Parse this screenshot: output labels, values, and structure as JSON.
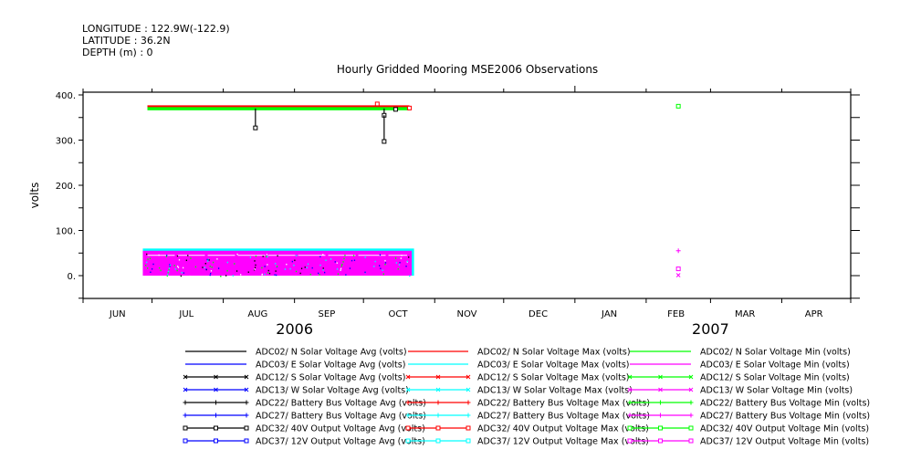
{
  "header": {
    "longitude": "LONGITUDE : 122.9W(-122.9)",
    "latitude": "LATITUDE : 36.2N",
    "depth": "DEPTH (m) : 0"
  },
  "chart_data": {
    "type": "scatter",
    "title": "Hourly Gridded Mooring MSE2006 Observations",
    "ylabel": "volts",
    "xlabel": "",
    "xlim": [
      "2006-06-01",
      "2007-05-01"
    ],
    "ylim": [
      -50,
      406
    ],
    "yticks": [
      0,
      100,
      200,
      300,
      400
    ],
    "ytick_labels": [
      "0.",
      "100.",
      "200.",
      "300.",
      "400."
    ],
    "month_labels": [
      {
        "label": "JUN",
        "date": "2006-06-16"
      },
      {
        "label": "JUL",
        "date": "2006-07-16"
      },
      {
        "label": "AUG",
        "date": "2006-08-16"
      },
      {
        "label": "SEP",
        "date": "2006-09-15"
      },
      {
        "label": "OCT",
        "date": "2006-10-16"
      },
      {
        "label": "NOV",
        "date": "2006-11-15"
      },
      {
        "label": "DEC",
        "date": "2006-12-16"
      },
      {
        "label": "JAN",
        "date": "2007-01-16"
      },
      {
        "label": "FEB",
        "date": "2007-02-14"
      },
      {
        "label": "MAR",
        "date": "2007-03-16"
      },
      {
        "label": "APR",
        "date": "2007-04-15"
      }
    ],
    "year_labels": [
      {
        "label": "2006",
        "date": "2006-09-01"
      },
      {
        "label": "2007",
        "date": "2007-03-01"
      }
    ],
    "grid": false,
    "legend_position": "bottom",
    "series": [
      {
        "name": "ADC02/ N Solar Voltage Avg (volts)",
        "color": "#000000",
        "marker": "none"
      },
      {
        "name": "ADC03/ E Solar Voltage Avg (volts)",
        "color": "#0000ff",
        "marker": "none"
      },
      {
        "name": "ADC12/ S Solar Voltage Avg (volts)",
        "color": "#000000",
        "marker": "x"
      },
      {
        "name": "ADC13/ W Solar Voltage Avg (volts)",
        "color": "#0000ff",
        "marker": "x"
      },
      {
        "name": "ADC22/ Battery Bus Voltage Avg (volts)",
        "color": "#000000",
        "marker": "plus"
      },
      {
        "name": "ADC27/ Battery Bus Voltage Avg (volts)",
        "color": "#0000ff",
        "marker": "plus"
      },
      {
        "name": "ADC32/ 40V Output Voltage Avg (volts)",
        "color": "#000000",
        "marker": "square"
      },
      {
        "name": "ADC37/ 12V Output Voltage Avg (volts)",
        "color": "#0000ff",
        "marker": "square"
      },
      {
        "name": "ADC02/ N Solar Voltage Max (volts)",
        "color": "#ff0000",
        "marker": "none"
      },
      {
        "name": "ADC03/ E Solar Voltage Max (volts)",
        "color": "#00ffff",
        "marker": "none"
      },
      {
        "name": "ADC12/ S Solar Voltage Max (volts)",
        "color": "#ff0000",
        "marker": "x"
      },
      {
        "name": "ADC13/ W Solar Voltage Max (volts)",
        "color": "#00ffff",
        "marker": "x"
      },
      {
        "name": "ADC22/ Battery Bus Voltage Max (volts)",
        "color": "#ff0000",
        "marker": "plus"
      },
      {
        "name": "ADC27/ Battery Bus Voltage Max (volts)",
        "color": "#00ffff",
        "marker": "plus"
      },
      {
        "name": "ADC32/ 40V Output Voltage Max (volts)",
        "color": "#ff0000",
        "marker": "square"
      },
      {
        "name": "ADC37/ 12V Output Voltage Max (volts)",
        "color": "#00ffff",
        "marker": "square"
      },
      {
        "name": "ADC02/ N Solar Voltage Min (volts)",
        "color": "#00ff00",
        "marker": "none"
      },
      {
        "name": "ADC03/ E Solar Voltage Min (volts)",
        "color": "#ff00ff",
        "marker": "none"
      },
      {
        "name": "ADC12/ S Solar Voltage Min (volts)",
        "color": "#00ff00",
        "marker": "x"
      },
      {
        "name": "ADC13/ W Solar Voltage Min (volts)",
        "color": "#ff00ff",
        "marker": "x"
      },
      {
        "name": "ADC22/ Battery Bus Voltage Min (volts)",
        "color": "#00ff00",
        "marker": "plus"
      },
      {
        "name": "ADC27/ Battery Bus Voltage Min (volts)",
        "color": "#ff00ff",
        "marker": "plus"
      },
      {
        "name": "ADC32/ 40V Output Voltage Min (volts)",
        "color": "#00ff00",
        "marker": "square"
      },
      {
        "name": "ADC37/ 12V Output Voltage Min (volts)",
        "color": "#ff00ff",
        "marker": "square"
      }
    ],
    "bands": [
      {
        "series": "ADC12/ S Solar Voltage Max (volts)",
        "color": "#00ffff",
        "start": "2006-06-27",
        "end": "2006-10-23",
        "low": 0,
        "high": 60
      },
      {
        "series": "ADC37/ 12V Output Voltage Min (volts)",
        "color": "#ff00ff",
        "start": "2006-06-27",
        "end": "2006-10-22",
        "low": 0,
        "high": 55
      },
      {
        "series": "ADC32/ 40V Output Voltage Max (volts)",
        "color": "#ff0000",
        "start": "2006-06-29",
        "end": "2006-10-21",
        "low": 372,
        "high": 377
      },
      {
        "series": "ADC32/ 40V Output Voltage Min (volts)",
        "color": "#00ff00",
        "start": "2006-06-29",
        "end": "2006-10-21",
        "low": 366,
        "high": 373
      }
    ],
    "points": [
      {
        "series": "ADC32/ 40V Output Voltage Avg (volts)",
        "date": "2006-08-15",
        "value": 327,
        "color": "#000000",
        "marker": "square",
        "stem_to": 370
      },
      {
        "series": "ADC32/ 40V Output Voltage Avg (volts)",
        "date": "2006-10-10",
        "value": 355,
        "color": "#000000",
        "marker": "square",
        "stem_to": 370
      },
      {
        "series": "ADC32/ 40V Output Voltage Avg (volts)",
        "date": "2006-10-10",
        "value": 297,
        "color": "#000000",
        "marker": "square",
        "stem_to": 355
      },
      {
        "series": "ADC32/ 40V Output Voltage Max (volts)",
        "date": "2006-10-07",
        "value": 380,
        "color": "#ff0000",
        "marker": "square"
      },
      {
        "series": "ADC32/ 40V Output Voltage Avg (volts)",
        "date": "2006-10-15",
        "value": 368,
        "color": "#000000",
        "marker": "square"
      },
      {
        "series": "ADC32/ 40V Output Voltage Max (volts)",
        "date": "2006-10-21",
        "value": 371,
        "color": "#ff0000",
        "marker": "square"
      },
      {
        "series": "ADC32/ 40V Output Voltage Min (volts)",
        "date": "2007-02-15",
        "value": 375,
        "color": "#00ff00",
        "marker": "square"
      },
      {
        "series": "ADC27/ Battery Bus Voltage Min (volts)",
        "date": "2007-02-15",
        "value": 55,
        "color": "#ff00ff",
        "marker": "plus"
      },
      {
        "series": "ADC37/ 12V Output Voltage Min (volts)",
        "date": "2007-02-15",
        "value": 15,
        "color": "#ff00ff",
        "marker": "square"
      },
      {
        "series": "ADC13/ W Solar Voltage Min (volts)",
        "date": "2007-02-15",
        "value": 1,
        "color": "#ff00ff",
        "marker": "x"
      }
    ]
  }
}
